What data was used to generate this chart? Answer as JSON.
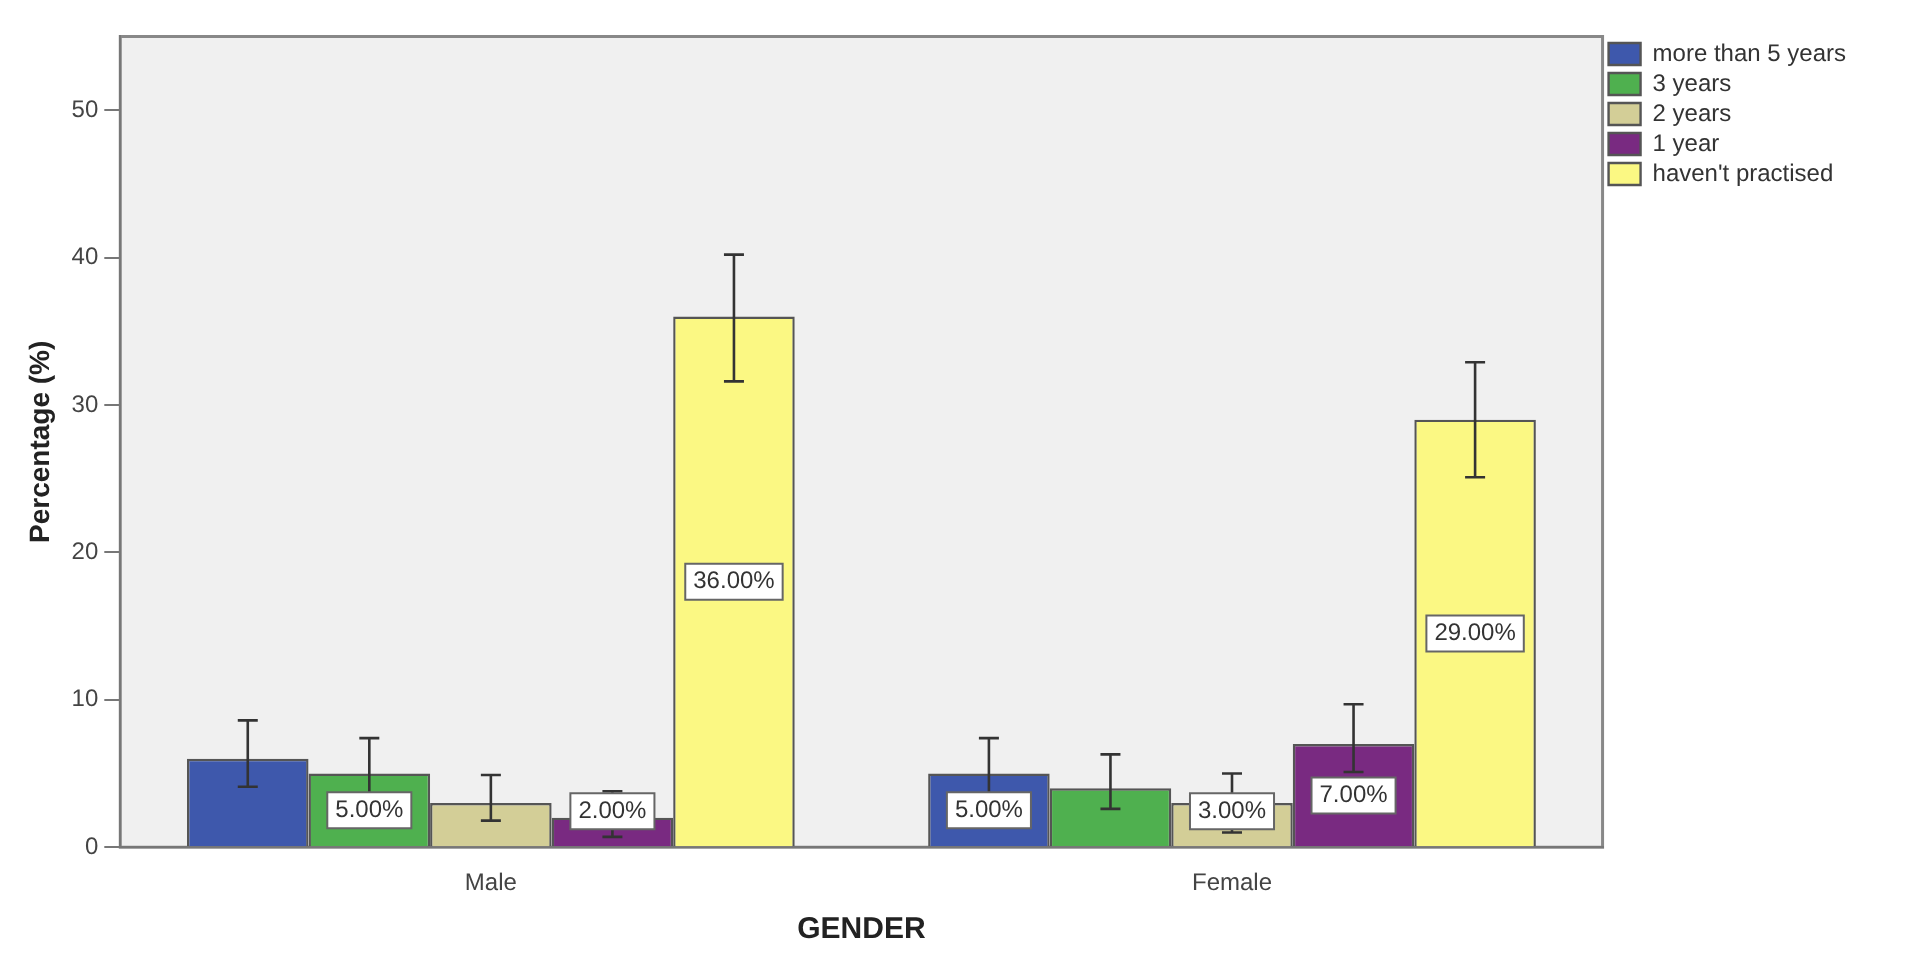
{
  "chart_data": {
    "type": "bar",
    "xlabel": "GENDER",
    "ylabel": "Percentage (%)",
    "categories": [
      "Male",
      "Female"
    ],
    "series": [
      {
        "name": "more than 5 years",
        "color": "#3e58ac",
        "values": [
          6,
          5
        ],
        "errors": [
          [
            4.1,
            8.6
          ],
          [
            3.6,
            7.4
          ]
        ],
        "value_labels": [
          null,
          "5.00%"
        ]
      },
      {
        "name": "3 years",
        "color": "#4fb04f",
        "values": [
          5,
          4
        ],
        "errors": [
          [
            3.6,
            7.4
          ],
          [
            2.6,
            6.3
          ]
        ],
        "value_labels": [
          "5.00%",
          null
        ]
      },
      {
        "name": "2 years",
        "color": "#d3ce97",
        "values": [
          3,
          3
        ],
        "errors": [
          [
            1.8,
            4.9
          ],
          [
            1,
            5
          ]
        ],
        "value_labels": [
          null,
          "3.00%"
        ]
      },
      {
        "name": "1 year",
        "color": "#792a81",
        "values": [
          2,
          7
        ],
        "errors": [
          [
            0.7,
            3.8
          ],
          [
            5.1,
            9.7
          ]
        ],
        "value_labels": [
          "2.00%",
          "7.00%"
        ]
      },
      {
        "name": "haven't practised",
        "color": "#fbf883",
        "values": [
          36,
          29
        ],
        "errors": [
          [
            31.6,
            40.2
          ],
          [
            25.1,
            32.9
          ]
        ],
        "value_labels": [
          "36.00%",
          "29.00%"
        ]
      }
    ],
    "ylim": [
      0,
      55
    ],
    "yticks": [
      0,
      10,
      20,
      30,
      40,
      50
    ],
    "grid": false,
    "legend": "top right"
  }
}
